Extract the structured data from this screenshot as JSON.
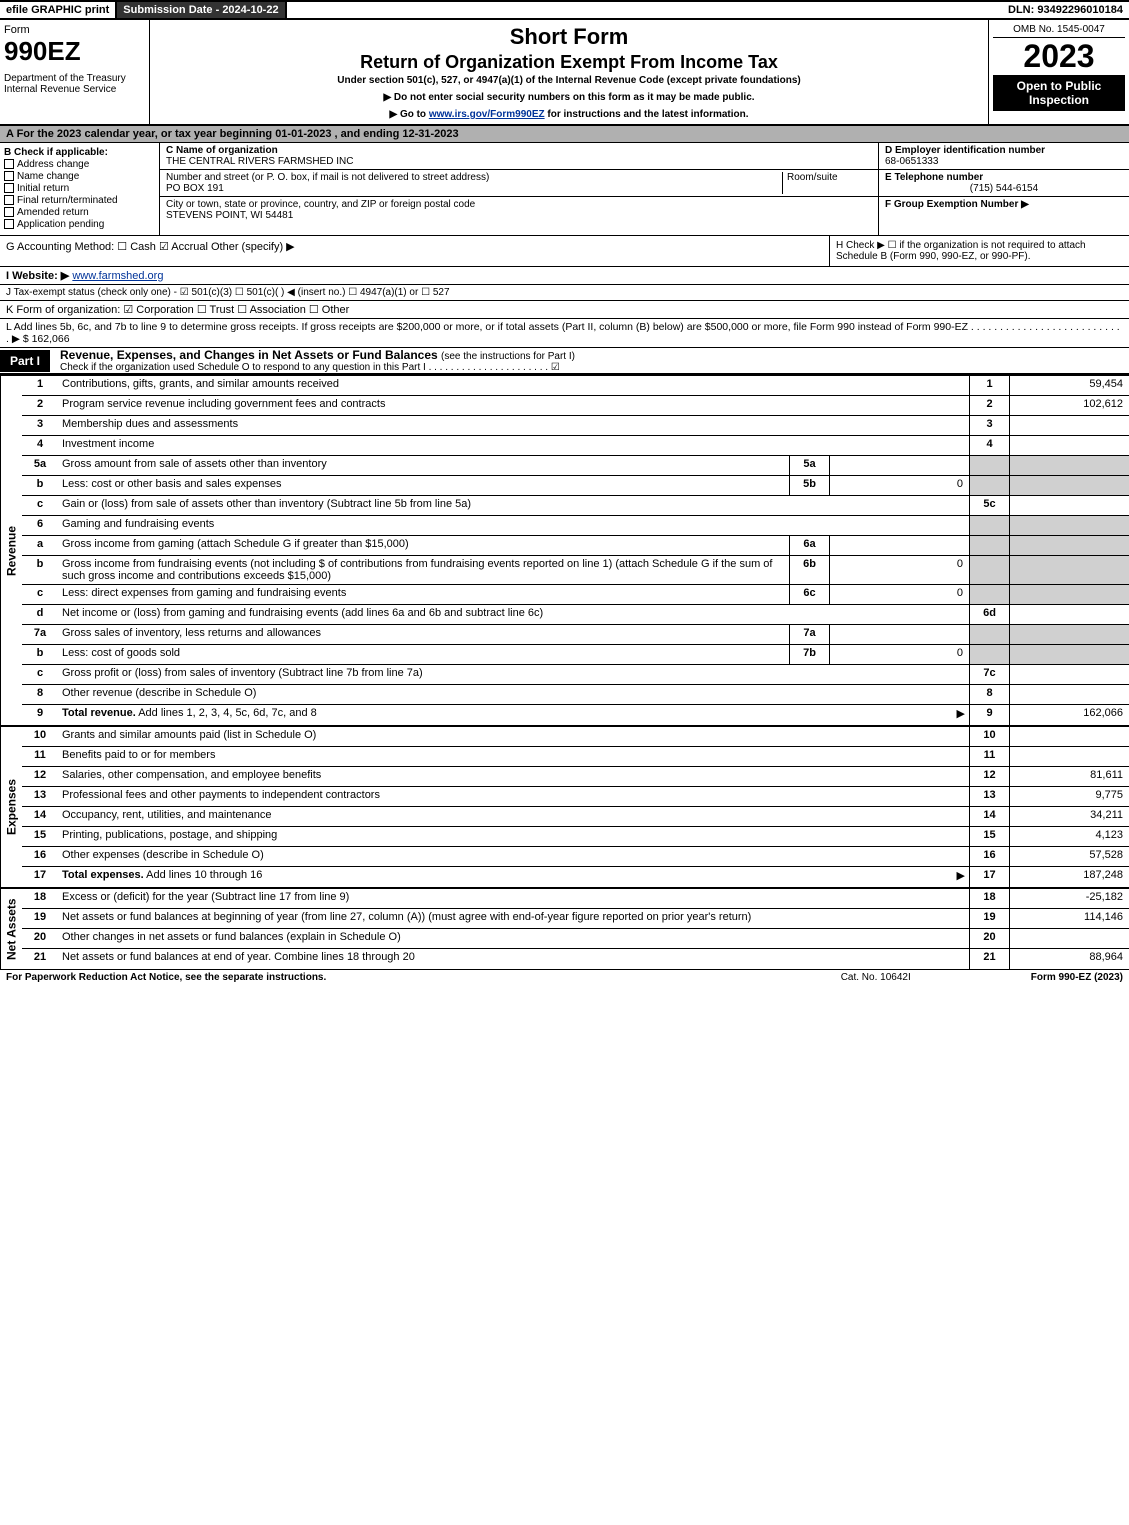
{
  "topbar": {
    "efile": "efile GRAPHIC print",
    "submission": "Submission Date - 2024-10-22",
    "dln": "DLN: 93492296010184"
  },
  "header": {
    "form_word": "Form",
    "form_num": "990EZ",
    "dept": "Department of the Treasury\nInternal Revenue Service",
    "title1": "Short Form",
    "title2": "Return of Organization Exempt From Income Tax",
    "subtitle": "Under section 501(c), 527, or 4947(a)(1) of the Internal Revenue Code (except private foundations)",
    "note1": "▶ Do not enter social security numbers on this form as it may be made public.",
    "note2": "▶ Go to www.irs.gov/Form990EZ for instructions and the latest information.",
    "note2_link": "www.irs.gov/Form990EZ",
    "omb": "OMB No. 1545-0047",
    "year": "2023",
    "open": "Open to Public Inspection"
  },
  "row_a": "A  For the 2023 calendar year, or tax year beginning 01-01-2023 , and ending 12-31-2023",
  "box_b": {
    "header": "B  Check if applicable:",
    "items": [
      "Address change",
      "Name change",
      "Initial return",
      "Final return/terminated",
      "Amended return",
      "Application pending"
    ]
  },
  "box_c": {
    "name_lbl": "C Name of organization",
    "name": "THE CENTRAL RIVERS FARMSHED INC",
    "street_lbl": "Number and street (or P. O. box, if mail is not delivered to street address)",
    "room_lbl": "Room/suite",
    "street": "PO BOX 191",
    "city_lbl": "City or town, state or province, country, and ZIP or foreign postal code",
    "city": "STEVENS POINT, WI  54481"
  },
  "box_d": {
    "lbl": "D Employer identification number",
    "val": "68-0651333"
  },
  "box_e": {
    "lbl": "E Telephone number",
    "val": "(715) 544-6154"
  },
  "box_f": {
    "lbl": "F Group Exemption Number  ▶",
    "val": ""
  },
  "line_g": "G Accounting Method:   ☐ Cash   ☑ Accrual   Other (specify) ▶",
  "line_h": "H  Check ▶  ☐  if the organization is not required to attach Schedule B (Form 990, 990-EZ, or 990-PF).",
  "line_i_lbl": "I Website: ▶",
  "line_i": "www.farmshed.org",
  "line_j": "J Tax-exempt status (check only one) - ☑ 501(c)(3) ☐ 501(c)(  ) ◀ (insert no.) ☐ 4947(a)(1) or ☐ 527",
  "line_k": "K Form of organization:  ☑ Corporation  ☐ Trust  ☐ Association  ☐ Other",
  "line_l": "L Add lines 5b, 6c, and 7b to line 9 to determine gross receipts. If gross receipts are $200,000 or more, or if total assets (Part II, column (B) below) are $500,000 or more, file Form 990 instead of Form 990-EZ  .  .  .  .  .  .  .  .  .  .  .  .  .  .  .  .  .  .  .  .  .  .  .  .  .  .  .  ▶ $ 162,066",
  "part1": {
    "tag": "Part I",
    "title": "Revenue, Expenses, and Changes in Net Assets or Fund Balances",
    "subtitle": "(see the instructions for Part I)",
    "check": "Check if the organization used Schedule O to respond to any question in this Part I  .  .  .  .  .  .  .  .  .  .  .  .  .  .  .  .  .  .  .  .  .  .  ☑"
  },
  "revenue_label": "Revenue",
  "expenses_label": "Expenses",
  "netassets_label": "Net Assets",
  "revenue_rows": [
    {
      "n": "1",
      "desc": "Contributions, gifts, grants, and similar amounts received",
      "col": "1",
      "val": "59,454"
    },
    {
      "n": "2",
      "desc": "Program service revenue including government fees and contracts",
      "col": "2",
      "val": "102,612"
    },
    {
      "n": "3",
      "desc": "Membership dues and assessments",
      "col": "3",
      "val": ""
    },
    {
      "n": "4",
      "desc": "Investment income",
      "col": "4",
      "val": ""
    },
    {
      "n": "5a",
      "desc": "Gross amount from sale of assets other than inventory",
      "sub": "5a",
      "subval": "",
      "shade": true
    },
    {
      "n": "b",
      "desc": "Less: cost or other basis and sales expenses",
      "sub": "5b",
      "subval": "0",
      "shade": true
    },
    {
      "n": "c",
      "desc": "Gain or (loss) from sale of assets other than inventory (Subtract line 5b from line 5a)",
      "col": "5c",
      "val": ""
    },
    {
      "n": "6",
      "desc": "Gaming and fundraising events",
      "shade": true
    },
    {
      "n": "a",
      "desc": "Gross income from gaming (attach Schedule G if greater than $15,000)",
      "sub": "6a",
      "subval": "",
      "shade": true
    },
    {
      "n": "b",
      "desc": "Gross income from fundraising events (not including $                     of contributions from fundraising events reported on line 1) (attach Schedule G if the sum of such gross income and contributions exceeds $15,000)",
      "sub": "6b",
      "subval": "0",
      "shade": true
    },
    {
      "n": "c",
      "desc": "Less: direct expenses from gaming and fundraising events",
      "sub": "6c",
      "subval": "0",
      "shade": true
    },
    {
      "n": "d",
      "desc": "Net income or (loss) from gaming and fundraising events (add lines 6a and 6b and subtract line 6c)",
      "col": "6d",
      "val": ""
    },
    {
      "n": "7a",
      "desc": "Gross sales of inventory, less returns and allowances",
      "sub": "7a",
      "subval": "",
      "shade": true
    },
    {
      "n": "b",
      "desc": "Less: cost of goods sold",
      "sub": "7b",
      "subval": "0",
      "shade": true
    },
    {
      "n": "c",
      "desc": "Gross profit or (loss) from sales of inventory (Subtract line 7b from line 7a)",
      "col": "7c",
      "val": ""
    },
    {
      "n": "8",
      "desc": "Other revenue (describe in Schedule O)",
      "col": "8",
      "val": ""
    },
    {
      "n": "9",
      "desc": "Total revenue. Add lines 1, 2, 3, 4, 5c, 6d, 7c, and 8",
      "col": "9",
      "val": "162,066",
      "bold": true,
      "arrow": true
    }
  ],
  "expense_rows": [
    {
      "n": "10",
      "desc": "Grants and similar amounts paid (list in Schedule O)",
      "col": "10",
      "val": ""
    },
    {
      "n": "11",
      "desc": "Benefits paid to or for members",
      "col": "11",
      "val": ""
    },
    {
      "n": "12",
      "desc": "Salaries, other compensation, and employee benefits",
      "col": "12",
      "val": "81,611"
    },
    {
      "n": "13",
      "desc": "Professional fees and other payments to independent contractors",
      "col": "13",
      "val": "9,775"
    },
    {
      "n": "14",
      "desc": "Occupancy, rent, utilities, and maintenance",
      "col": "14",
      "val": "34,211"
    },
    {
      "n": "15",
      "desc": "Printing, publications, postage, and shipping",
      "col": "15",
      "val": "4,123"
    },
    {
      "n": "16",
      "desc": "Other expenses (describe in Schedule O)",
      "col": "16",
      "val": "57,528"
    },
    {
      "n": "17",
      "desc": "Total expenses. Add lines 10 through 16",
      "col": "17",
      "val": "187,248",
      "bold": true,
      "arrow": true
    }
  ],
  "netasset_rows": [
    {
      "n": "18",
      "desc": "Excess or (deficit) for the year (Subtract line 17 from line 9)",
      "col": "18",
      "val": "-25,182"
    },
    {
      "n": "19",
      "desc": "Net assets or fund balances at beginning of year (from line 27, column (A)) (must agree with end-of-year figure reported on prior year's return)",
      "col": "19",
      "val": "114,146"
    },
    {
      "n": "20",
      "desc": "Other changes in net assets or fund balances (explain in Schedule O)",
      "col": "20",
      "val": ""
    },
    {
      "n": "21",
      "desc": "Net assets or fund balances at end of year. Combine lines 18 through 20",
      "col": "21",
      "val": "88,964"
    }
  ],
  "footer": {
    "left": "For Paperwork Reduction Act Notice, see the separate instructions.",
    "center": "Cat. No. 10642I",
    "right": "Form 990-EZ (2023)"
  }
}
